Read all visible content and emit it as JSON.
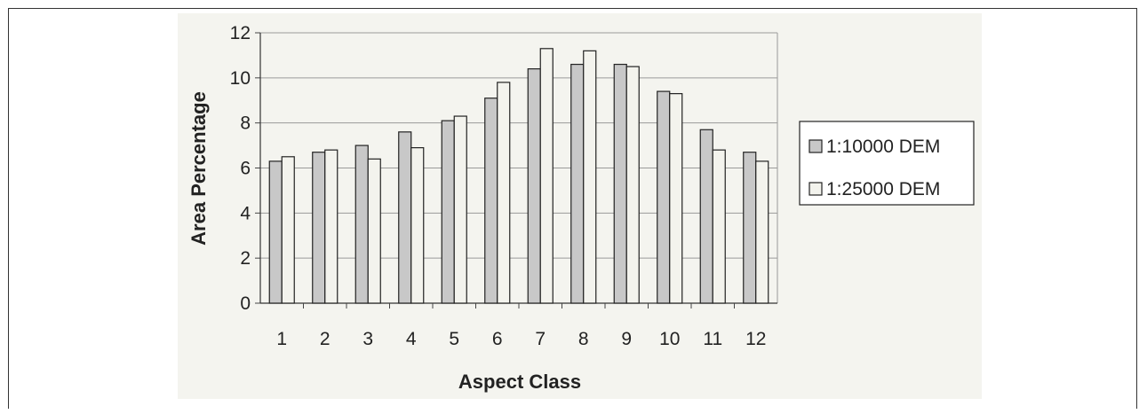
{
  "chart_data": {
    "type": "bar",
    "categories": [
      "1",
      "2",
      "3",
      "4",
      "5",
      "6",
      "7",
      "8",
      "9",
      "10",
      "11",
      "12"
    ],
    "series": [
      {
        "name": "1:10000 DEM",
        "color": "#c8c8c8",
        "values": [
          6.3,
          6.7,
          7.0,
          7.6,
          8.1,
          9.1,
          10.4,
          10.6,
          10.6,
          9.4,
          7.7,
          6.7
        ]
      },
      {
        "name": "1:25000 DEM",
        "color": "#f3f3ed",
        "values": [
          6.5,
          6.8,
          6.4,
          6.9,
          8.3,
          9.8,
          11.3,
          11.2,
          10.5,
          9.3,
          6.8,
          6.3
        ]
      }
    ],
    "xlabel": "Aspect Class",
    "ylabel": "Area Percentage",
    "ylim": [
      0,
      12
    ],
    "yticks": [
      "0",
      "2",
      "4",
      "6",
      "8",
      "10",
      "12"
    ],
    "grid": true,
    "legend_position": "right",
    "plot_background": "#f4f4ef"
  }
}
